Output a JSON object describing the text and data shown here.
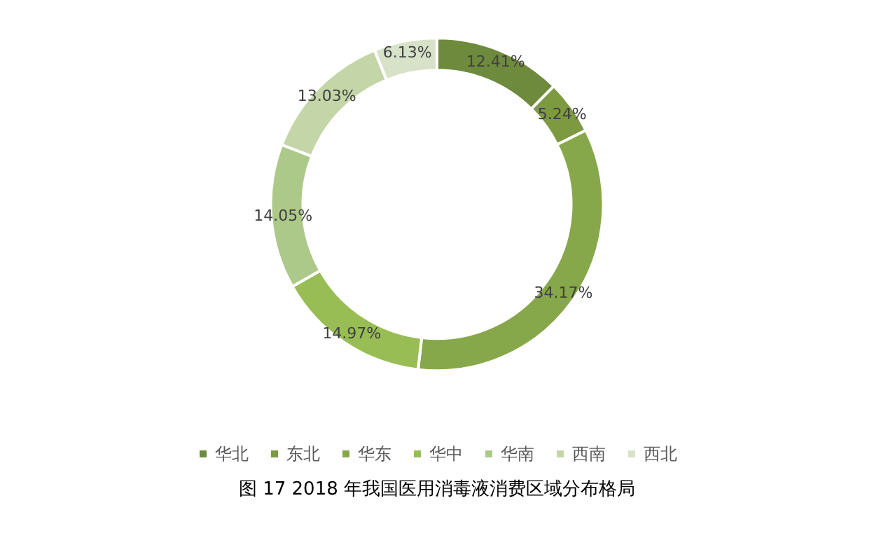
{
  "chart_data": {
    "type": "donut",
    "title": "图 17 2018 年我国医用消毒液消费区域分布格局",
    "categories": [
      "华北",
      "东北",
      "华东",
      "华中",
      "华南",
      "西南",
      "西北"
    ],
    "values": [
      12.41,
      5.24,
      34.17,
      14.97,
      14.05,
      13.03,
      6.13
    ],
    "value_labels": [
      "12.41%",
      "5.24%",
      "34.17%",
      "14.97%",
      "14.05%",
      "13.03%",
      "6.13%"
    ],
    "colors": [
      "#6e8a3c",
      "#7d9a41",
      "#86a84a",
      "#98bd55",
      "#adc98a",
      "#c4d6a8",
      "#d8e2c9"
    ],
    "legend": "bottom"
  }
}
